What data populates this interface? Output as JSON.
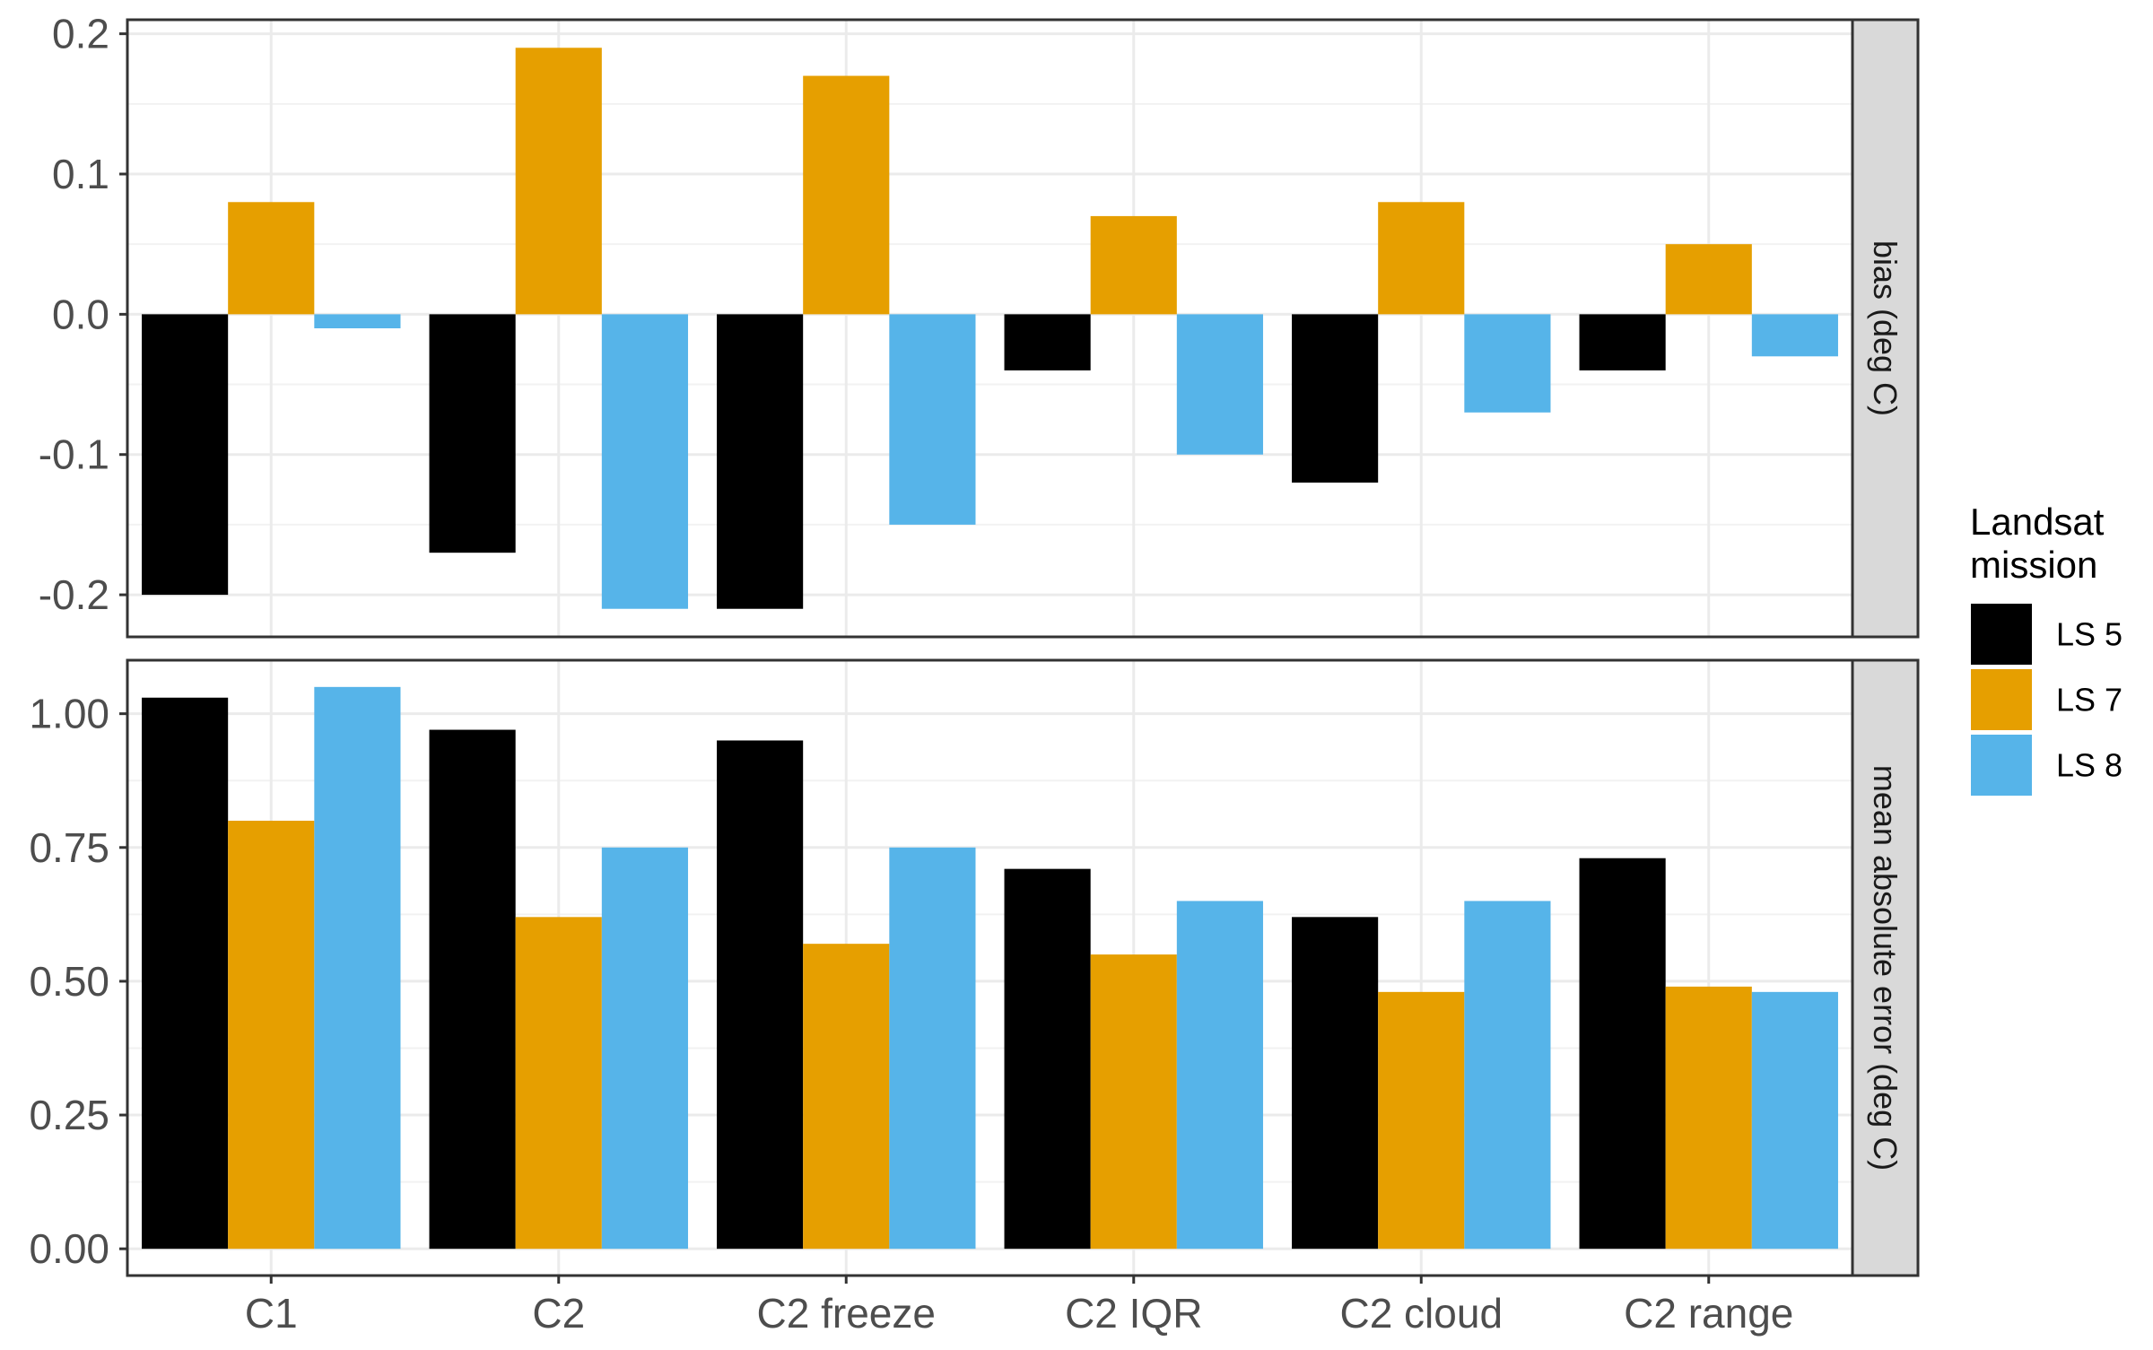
{
  "chart_data": {
    "type": "bar",
    "categories": [
      "C1",
      "C2",
      "C2 freeze",
      "C2 IQR",
      "C2 cloud",
      "C2 range"
    ],
    "legend": {
      "title_lines": [
        "Landsat",
        "mission"
      ],
      "placement": "right"
    },
    "series_meta": [
      {
        "name": "LS 5",
        "color": "#000000"
      },
      {
        "name": "LS 7",
        "color": "#E69F00"
      },
      {
        "name": "LS 8",
        "color": "#56B4E9"
      }
    ],
    "panels": [
      {
        "strip_label": "bias (deg C)",
        "ylim": [
          -0.23,
          0.21
        ],
        "yticks": [
          -0.2,
          -0.1,
          0.0,
          0.1,
          0.2
        ],
        "ytick_labels": [
          "-0.2",
          "-0.1",
          "0.0",
          "0.1",
          "0.2"
        ],
        "series": [
          {
            "name": "LS 5",
            "values": [
              -0.2,
              -0.17,
              -0.21,
              -0.04,
              -0.12,
              -0.04
            ]
          },
          {
            "name": "LS 7",
            "values": [
              0.08,
              0.19,
              0.17,
              0.07,
              0.08,
              0.05
            ]
          },
          {
            "name": "LS 8",
            "values": [
              -0.01,
              -0.21,
              -0.15,
              -0.1,
              -0.07,
              -0.03
            ]
          }
        ]
      },
      {
        "strip_label": "mean absolute error (deg C)",
        "ylim": [
          -0.05,
          1.1
        ],
        "yticks": [
          0.0,
          0.25,
          0.5,
          0.75,
          1.0
        ],
        "ytick_labels": [
          "0.00",
          "0.25",
          "0.50",
          "0.75",
          "1.00"
        ],
        "series": [
          {
            "name": "LS 5",
            "values": [
              1.03,
              0.97,
              0.95,
              0.71,
              0.62,
              0.73
            ]
          },
          {
            "name": "LS 7",
            "values": [
              0.8,
              0.62,
              0.57,
              0.55,
              0.48,
              0.49
            ]
          },
          {
            "name": "LS 8",
            "values": [
              1.05,
              0.75,
              0.75,
              0.65,
              0.65,
              0.48
            ]
          }
        ]
      }
    ],
    "grid": true,
    "xlabel": "",
    "ylabel": ""
  }
}
